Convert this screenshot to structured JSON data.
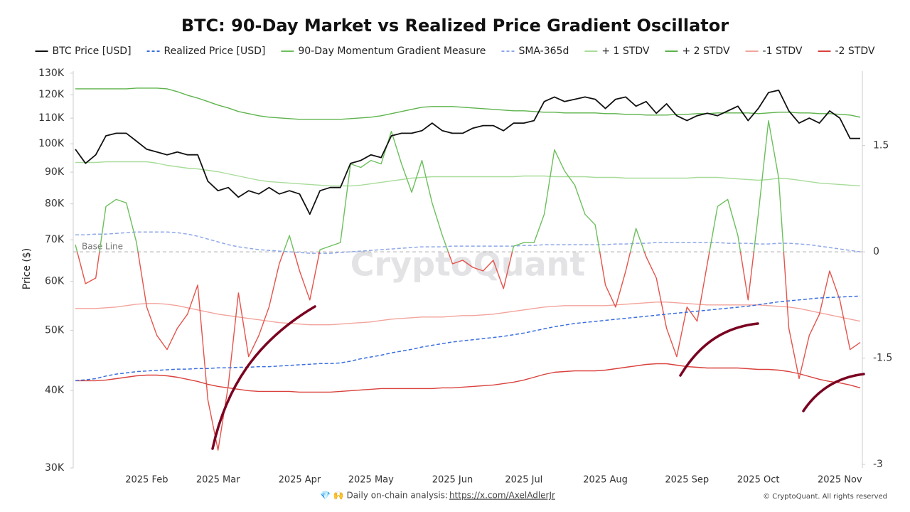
{
  "chart_data": {
    "type": "line",
    "title": "BTC: 90-Day Market vs Realized Price Gradient Oscillator",
    "y_label": "Price ($)",
    "watermark": "CryptoQuant",
    "footer": {
      "text": "💎 🙌 Daily on-chain analysis: ",
      "link": "https://x.com/AxelAdlerJr",
      "copyright": "© CryptoQuant. All rights reserved"
    },
    "base_line": {
      "value": 0,
      "label": "Base Line"
    },
    "log_scale": true,
    "ylim": [
      30000,
      131000
    ],
    "yticks": [
      {
        "value": 30000,
        "label": "30K"
      },
      {
        "value": 40000,
        "label": "40K"
      },
      {
        "value": 50000,
        "label": "50K"
      },
      {
        "value": 60000,
        "label": "60K"
      },
      {
        "value": 70000,
        "label": "70K"
      },
      {
        "value": 80000,
        "label": "80K"
      },
      {
        "value": 90000,
        "label": "90K"
      },
      {
        "value": 100000,
        "label": "100K"
      },
      {
        "value": 110000,
        "label": "110K"
      },
      {
        "value": 120000,
        "label": "120K"
      },
      {
        "value": 130000,
        "label": "130K"
      }
    ],
    "y2lim": [
      -3.05,
      2.55
    ],
    "y2ticks": [
      1.5,
      0,
      -1.5,
      -3
    ],
    "categories": [
      null,
      null,
      null,
      null,
      null,
      null,
      null,
      "2025 Feb",
      null,
      null,
      null,
      null,
      null,
      null,
      "2025 Mar",
      null,
      null,
      null,
      null,
      null,
      null,
      null,
      "2025 Apr",
      null,
      null,
      null,
      null,
      null,
      null,
      "2025 May",
      null,
      null,
      null,
      null,
      null,
      null,
      null,
      "2025 Jun",
      null,
      null,
      null,
      null,
      null,
      null,
      "2025 Jul",
      null,
      null,
      null,
      null,
      null,
      null,
      null,
      "2025 Aug",
      null,
      null,
      null,
      null,
      null,
      null,
      null,
      "2025 Sep",
      null,
      null,
      null,
      null,
      null,
      null,
      "2025 Oct",
      null,
      null,
      null,
      null,
      null,
      null,
      null,
      "2025 Nov",
      null,
      null
    ],
    "series": [
      {
        "name": "BTC Price [USD]",
        "color": "#111111",
        "dash": false,
        "axis": "y",
        "values": [
          98000,
          93000,
          96000,
          103000,
          104000,
          104000,
          101000,
          98000,
          97000,
          96000,
          97000,
          96000,
          96000,
          87000,
          84000,
          85000,
          82000,
          84000,
          83000,
          85000,
          83000,
          84000,
          83000,
          77000,
          84000,
          85000,
          85000,
          93000,
          94000,
          96000,
          95000,
          103000,
          104000,
          104000,
          105000,
          108000,
          105000,
          104000,
          104000,
          106000,
          107000,
          107000,
          105000,
          108000,
          108000,
          109000,
          117000,
          119000,
          117000,
          118000,
          119000,
          118000,
          114000,
          118000,
          119000,
          115000,
          117000,
          112000,
          116000,
          111000,
          109000,
          111000,
          112000,
          111000,
          113000,
          115000,
          109000,
          114000,
          121000,
          122000,
          113000,
          108000,
          110000,
          108000,
          113000,
          110000,
          102000,
          102000
        ]
      },
      {
        "name": "Realized Price [USD]",
        "color": "#3b6fe0",
        "dash": true,
        "axis": "y",
        "values": [
          41500,
          41600,
          41800,
          42200,
          42500,
          42700,
          42900,
          43000,
          43100,
          43200,
          43300,
          43300,
          43400,
          43400,
          43500,
          43500,
          43600,
          43600,
          43700,
          43700,
          43800,
          43900,
          44000,
          44100,
          44200,
          44200,
          44300,
          44600,
          45000,
          45300,
          45600,
          46000,
          46300,
          46600,
          47000,
          47300,
          47600,
          47900,
          48100,
          48300,
          48500,
          48700,
          48900,
          49200,
          49500,
          49900,
          50300,
          50700,
          51000,
          51300,
          51500,
          51700,
          51900,
          52100,
          52300,
          52500,
          52700,
          52900,
          53100,
          53300,
          53500,
          53700,
          53900,
          54100,
          54300,
          54500,
          54700,
          55000,
          55300,
          55600,
          55800,
          56000,
          56200,
          56400,
          56500,
          56600,
          56700,
          56800
        ]
      },
      {
        "name": "90-Day Momentum Gradient Measure",
        "color": "#6cbf5c",
        "negative_color": "#e5534b",
        "dash": false,
        "axis": "y2",
        "values": [
          0.1,
          -0.45,
          -0.37,
          0.64,
          0.74,
          0.69,
          0.13,
          -0.78,
          -1.18,
          -1.38,
          -1.08,
          -0.88,
          -0.47,
          -2.09,
          -2.8,
          -1.89,
          -0.58,
          -1.48,
          -1.18,
          -0.78,
          -0.17,
          0.23,
          -0.27,
          -0.68,
          0.03,
          0.08,
          0.13,
          1.24,
          1.19,
          1.29,
          1.24,
          1.7,
          1.24,
          0.84,
          1.29,
          0.69,
          0.23,
          -0.17,
          -0.12,
          -0.22,
          -0.27,
          -0.12,
          -0.52,
          0.08,
          0.13,
          0.13,
          0.53,
          1.44,
          1.14,
          0.94,
          0.53,
          0.38,
          -0.47,
          -0.78,
          -0.27,
          0.33,
          -0.07,
          -0.37,
          -1.08,
          -1.48,
          -0.78,
          -0.98,
          -0.17,
          0.64,
          0.74,
          0.23,
          -0.68,
          0.53,
          1.85,
          1.04,
          -1.08,
          -1.79,
          -1.18,
          -0.88,
          -0.27,
          -0.68,
          -1.38,
          -1.28
        ]
      },
      {
        "name": "SMA-365d",
        "color": "#8fa8e8",
        "dash": true,
        "axis": "y2",
        "values": [
          0.24,
          0.24,
          0.25,
          0.25,
          0.26,
          0.27,
          0.28,
          0.28,
          0.28,
          0.28,
          0.27,
          0.25,
          0.22,
          0.18,
          0.14,
          0.1,
          0.07,
          0.05,
          0.03,
          0.02,
          0.01,
          0.0,
          -0.01,
          -0.02,
          -0.02,
          -0.02,
          -0.01,
          0.0,
          0.01,
          0.02,
          0.03,
          0.04,
          0.05,
          0.06,
          0.07,
          0.07,
          0.07,
          0.08,
          0.08,
          0.08,
          0.08,
          0.08,
          0.08,
          0.08,
          0.09,
          0.09,
          0.1,
          0.1,
          0.1,
          0.1,
          0.1,
          0.1,
          0.1,
          0.11,
          0.11,
          0.12,
          0.12,
          0.13,
          0.13,
          0.13,
          0.13,
          0.13,
          0.13,
          0.13,
          0.12,
          0.12,
          0.12,
          0.11,
          0.11,
          0.12,
          0.12,
          0.11,
          0.1,
          0.08,
          0.06,
          0.04,
          0.02,
          0.0
        ]
      },
      {
        "name": "+ 1 STDV",
        "color": "#a8dc9a",
        "dash": false,
        "axis": "y2",
        "values": [
          1.26,
          1.26,
          1.26,
          1.27,
          1.27,
          1.27,
          1.27,
          1.27,
          1.25,
          1.22,
          1.2,
          1.18,
          1.17,
          1.15,
          1.13,
          1.1,
          1.07,
          1.04,
          1.01,
          0.99,
          0.98,
          0.97,
          0.96,
          0.95,
          0.94,
          0.93,
          0.93,
          0.93,
          0.94,
          0.96,
          0.98,
          1.0,
          1.02,
          1.04,
          1.05,
          1.06,
          1.06,
          1.06,
          1.06,
          1.06,
          1.06,
          1.06,
          1.06,
          1.06,
          1.07,
          1.07,
          1.07,
          1.06,
          1.06,
          1.06,
          1.06,
          1.05,
          1.05,
          1.05,
          1.04,
          1.04,
          1.04,
          1.04,
          1.04,
          1.04,
          1.04,
          1.05,
          1.05,
          1.05,
          1.04,
          1.03,
          1.02,
          1.01,
          1.02,
          1.04,
          1.03,
          1.01,
          0.99,
          0.97,
          0.96,
          0.95,
          0.94,
          0.93
        ]
      },
      {
        "name": "+ 2 STDV",
        "color": "#5db34b",
        "dash": false,
        "axis": "y2",
        "values": [
          2.3,
          2.3,
          2.3,
          2.3,
          2.3,
          2.3,
          2.31,
          2.31,
          2.31,
          2.3,
          2.26,
          2.21,
          2.17,
          2.12,
          2.07,
          2.03,
          1.98,
          1.95,
          1.92,
          1.9,
          1.89,
          1.88,
          1.87,
          1.87,
          1.87,
          1.87,
          1.87,
          1.88,
          1.89,
          1.9,
          1.92,
          1.95,
          1.98,
          2.01,
          2.04,
          2.05,
          2.05,
          2.05,
          2.04,
          2.03,
          2.02,
          2.01,
          2.0,
          1.99,
          1.99,
          1.98,
          1.97,
          1.97,
          1.96,
          1.96,
          1.96,
          1.96,
          1.95,
          1.95,
          1.94,
          1.94,
          1.93,
          1.93,
          1.93,
          1.94,
          1.94,
          1.95,
          1.95,
          1.96,
          1.96,
          1.96,
          1.96,
          1.95,
          1.96,
          1.97,
          1.97,
          1.96,
          1.96,
          1.95,
          1.95,
          1.94,
          1.93,
          1.9
        ]
      },
      {
        "name": "-1 STDV",
        "color": "#f2a49c",
        "dash": false,
        "axis": "y2",
        "values": [
          -0.8,
          -0.8,
          -0.8,
          -0.79,
          -0.78,
          -0.76,
          -0.74,
          -0.73,
          -0.73,
          -0.74,
          -0.76,
          -0.79,
          -0.82,
          -0.85,
          -0.88,
          -0.9,
          -0.92,
          -0.94,
          -0.96,
          -0.98,
          -1.0,
          -1.01,
          -1.02,
          -1.03,
          -1.03,
          -1.03,
          -1.02,
          -1.01,
          -1.0,
          -0.99,
          -0.97,
          -0.95,
          -0.94,
          -0.93,
          -0.92,
          -0.92,
          -0.92,
          -0.91,
          -0.9,
          -0.9,
          -0.89,
          -0.88,
          -0.86,
          -0.84,
          -0.82,
          -0.8,
          -0.78,
          -0.77,
          -0.76,
          -0.76,
          -0.76,
          -0.76,
          -0.76,
          -0.75,
          -0.74,
          -0.73,
          -0.72,
          -0.71,
          -0.71,
          -0.72,
          -0.73,
          -0.74,
          -0.75,
          -0.75,
          -0.75,
          -0.75,
          -0.75,
          -0.75,
          -0.76,
          -0.77,
          -0.78,
          -0.8,
          -0.83,
          -0.86,
          -0.89,
          -0.92,
          -0.95,
          -0.98
        ]
      },
      {
        "name": "-2 STDV",
        "color": "#d9423e",
        "dash": false,
        "axis": "y2",
        "values": [
          -1.82,
          -1.82,
          -1.82,
          -1.81,
          -1.79,
          -1.77,
          -1.75,
          -1.74,
          -1.74,
          -1.75,
          -1.77,
          -1.8,
          -1.83,
          -1.87,
          -1.9,
          -1.92,
          -1.94,
          -1.96,
          -1.97,
          -1.97,
          -1.97,
          -1.97,
          -1.98,
          -1.98,
          -1.98,
          -1.98,
          -1.97,
          -1.96,
          -1.95,
          -1.94,
          -1.93,
          -1.93,
          -1.93,
          -1.93,
          -1.93,
          -1.93,
          -1.92,
          -1.92,
          -1.91,
          -1.9,
          -1.89,
          -1.88,
          -1.86,
          -1.84,
          -1.81,
          -1.77,
          -1.73,
          -1.7,
          -1.69,
          -1.68,
          -1.68,
          -1.68,
          -1.67,
          -1.65,
          -1.63,
          -1.61,
          -1.59,
          -1.58,
          -1.58,
          -1.6,
          -1.62,
          -1.63,
          -1.64,
          -1.64,
          -1.64,
          -1.64,
          -1.65,
          -1.66,
          -1.66,
          -1.67,
          -1.69,
          -1.72,
          -1.76,
          -1.8,
          -1.83,
          -1.85,
          -1.88,
          -1.92
        ]
      }
    ]
  }
}
